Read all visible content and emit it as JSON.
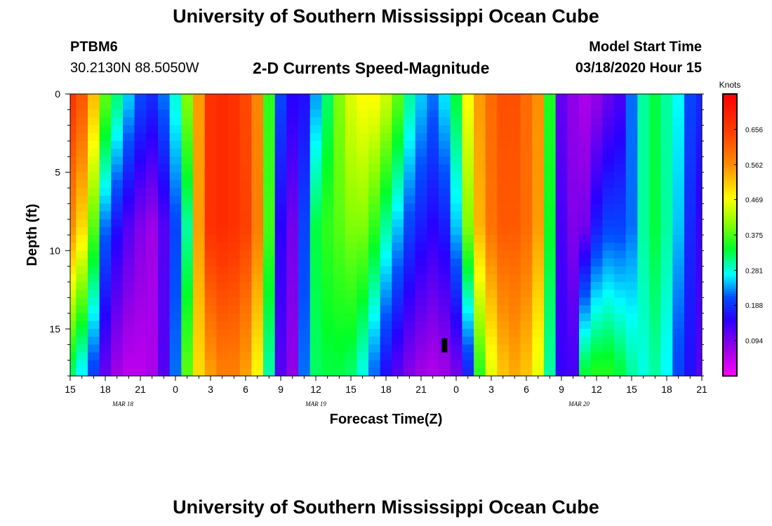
{
  "header": {
    "title": "University of Southern Mississippi Ocean Cube",
    "station": "PTBM6",
    "coordinates": "30.2130N 88.5050W",
    "subtitle": "2-D Currents Speed-Magnitude",
    "model_start_label": "Model Start Time",
    "model_start_value": "03/18/2020 Hour 15"
  },
  "footer": {
    "title": "University of Southern Mississippi Ocean Cube"
  },
  "chart_data": {
    "type": "heatmap",
    "title": "2-D Currents Speed-Magnitude",
    "xlabel": "Forecast Time(Z)",
    "ylabel": "Depth (ft)",
    "x_range_hours": [
      0,
      54
    ],
    "x_tick_labels": [
      "15",
      "18",
      "21",
      "0",
      "3",
      "6",
      "9",
      "12",
      "15",
      "18",
      "21",
      "0",
      "3",
      "6",
      "9",
      "12",
      "15",
      "18",
      "21"
    ],
    "date_labels": [
      {
        "text": "MAR 18",
        "hour": 4.5
      },
      {
        "text": "MAR 19",
        "hour": 21
      },
      {
        "text": "MAR 20",
        "hour": 43.5
      }
    ],
    "y_range_ft": [
      0,
      18
    ],
    "y_ticks": [
      0,
      5,
      10,
      15
    ],
    "colorbar": {
      "label": "Knots",
      "range": [
        0,
        0.75
      ],
      "tick_values": [
        0.094,
        0.188,
        0.281,
        0.375,
        0.469,
        0.562,
        0.656
      ],
      "tick_labels": [
        "0.094",
        "0.188",
        "0.281",
        "0.375",
        "0.469",
        "0.562",
        "0.656"
      ]
    },
    "depth_rows_ft": [
      0.5,
      8.5,
      17.5
    ],
    "column_hours": [
      0,
      1,
      2,
      3,
      4,
      5,
      6,
      7,
      8,
      9,
      10,
      11,
      12,
      13,
      14,
      15,
      16,
      17,
      18,
      19,
      20,
      21,
      22,
      23,
      24,
      25,
      26,
      27,
      28,
      29,
      30,
      31,
      32,
      33,
      34,
      35,
      36,
      37,
      38,
      39,
      40,
      41,
      42,
      43,
      44,
      45,
      46,
      47,
      48,
      49,
      50,
      51,
      52,
      53,
      54
    ],
    "speed_profiles_knots": {
      "surface": [
        0.66,
        0.62,
        0.52,
        0.38,
        0.31,
        0.25,
        0.2,
        0.18,
        0.22,
        0.28,
        0.4,
        0.55,
        0.67,
        0.68,
        0.67,
        0.64,
        0.57,
        0.36,
        0.2,
        0.15,
        0.16,
        0.24,
        0.32,
        0.4,
        0.45,
        0.47,
        0.47,
        0.44,
        0.38,
        0.3,
        0.25,
        0.22,
        0.26,
        0.33,
        0.47,
        0.55,
        0.6,
        0.63,
        0.63,
        0.6,
        0.56,
        0.35,
        0.11,
        0.08,
        0.06,
        0.08,
        0.11,
        0.13,
        0.22,
        0.3,
        0.33,
        0.3,
        0.27,
        0.2,
        0.18
      ],
      "mid": [
        0.56,
        0.5,
        0.38,
        0.22,
        0.16,
        0.12,
        0.09,
        0.07,
        0.12,
        0.2,
        0.3,
        0.55,
        0.67,
        0.68,
        0.67,
        0.65,
        0.58,
        0.37,
        0.15,
        0.1,
        0.2,
        0.33,
        0.36,
        0.38,
        0.4,
        0.4,
        0.36,
        0.3,
        0.25,
        0.2,
        0.17,
        0.15,
        0.17,
        0.25,
        0.4,
        0.53,
        0.59,
        0.62,
        0.62,
        0.6,
        0.55,
        0.34,
        0.13,
        0.09,
        0.1,
        0.17,
        0.2,
        0.2,
        0.22,
        0.3,
        0.33,
        0.3,
        0.25,
        0.18,
        0.14
      ],
      "bottom": [
        0.32,
        0.27,
        0.2,
        0.11,
        0.07,
        0.05,
        0.05,
        0.06,
        0.12,
        0.22,
        0.38,
        0.5,
        0.55,
        0.58,
        0.58,
        0.55,
        0.48,
        0.3,
        0.12,
        0.08,
        0.22,
        0.32,
        0.33,
        0.33,
        0.32,
        0.28,
        0.22,
        0.16,
        0.12,
        0.09,
        0.07,
        0.06,
        0.07,
        0.1,
        0.18,
        0.36,
        0.46,
        0.52,
        0.54,
        0.52,
        0.46,
        0.3,
        0.14,
        0.13,
        0.33,
        0.35,
        0.35,
        0.33,
        0.3,
        0.28,
        0.3,
        0.27,
        0.2,
        0.16,
        0.12
      ]
    },
    "annotations": [
      {
        "type": "marker",
        "hour": 32,
        "depth_from_ft": 15.6,
        "depth_to_ft": 16.5,
        "color": "#000000"
      }
    ]
  }
}
